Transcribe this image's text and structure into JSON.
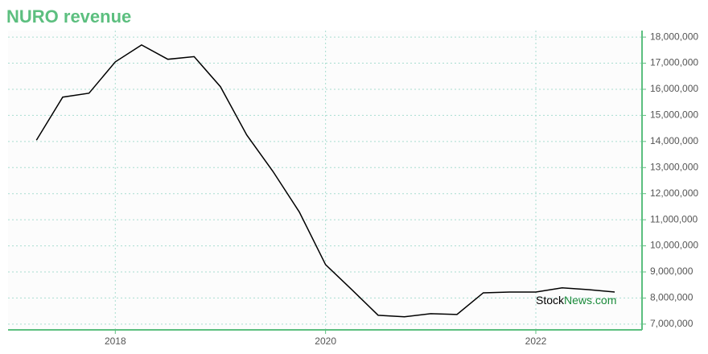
{
  "chart_data": {
    "type": "line",
    "title": "NURO revenue",
    "x": [
      2017.25,
      2017.5,
      2017.75,
      2018,
      2018.25,
      2018.5,
      2018.75,
      2019,
      2019.25,
      2019.5,
      2019.75,
      2020,
      2020.25,
      2020.5,
      2020.75,
      2021,
      2021.25,
      2021.5,
      2021.75,
      2022,
      2022.25,
      2022.5,
      2022.75
    ],
    "series": [
      {
        "name": "NURO revenue",
        "color": "#000000",
        "values": [
          14050000,
          15700000,
          15850000,
          17050000,
          17700000,
          17150000,
          17250000,
          16100000,
          14250000,
          12850000,
          11300000,
          9280000,
          8320000,
          7340000,
          7280000,
          7400000,
          7370000,
          8200000,
          8230000,
          8230000,
          8390000,
          8320000,
          8230000
        ]
      }
    ],
    "xlim": [
      2016.98,
      2023.01
    ],
    "xticks": [
      2018,
      2020,
      2022
    ],
    "ylim": [
      6780000,
      18250000
    ],
    "yticks": [
      {
        "value": 7000000,
        "label": "7,000,000"
      },
      {
        "value": 8000000,
        "label": "8,000,000"
      },
      {
        "value": 9000000,
        "label": "9,000,000"
      },
      {
        "value": 10000000,
        "label": "10,000,000"
      },
      {
        "value": 11000000,
        "label": "11,000,000"
      },
      {
        "value": 12000000,
        "label": "12,000,000"
      },
      {
        "value": 13000000,
        "label": "13,000,000"
      },
      {
        "value": 14000000,
        "label": "14,000,000"
      },
      {
        "value": 15000000,
        "label": "15,000,000"
      },
      {
        "value": 16000000,
        "label": "16,000,000"
      },
      {
        "value": 17000000,
        "label": "17,000,000"
      },
      {
        "value": 18000000,
        "label": "18,000,000"
      }
    ],
    "grid": true,
    "axis_color": "#5cbf7f",
    "grid_color": "#a8ddd0"
  },
  "watermark": [
    "Stock",
    "News.com"
  ]
}
